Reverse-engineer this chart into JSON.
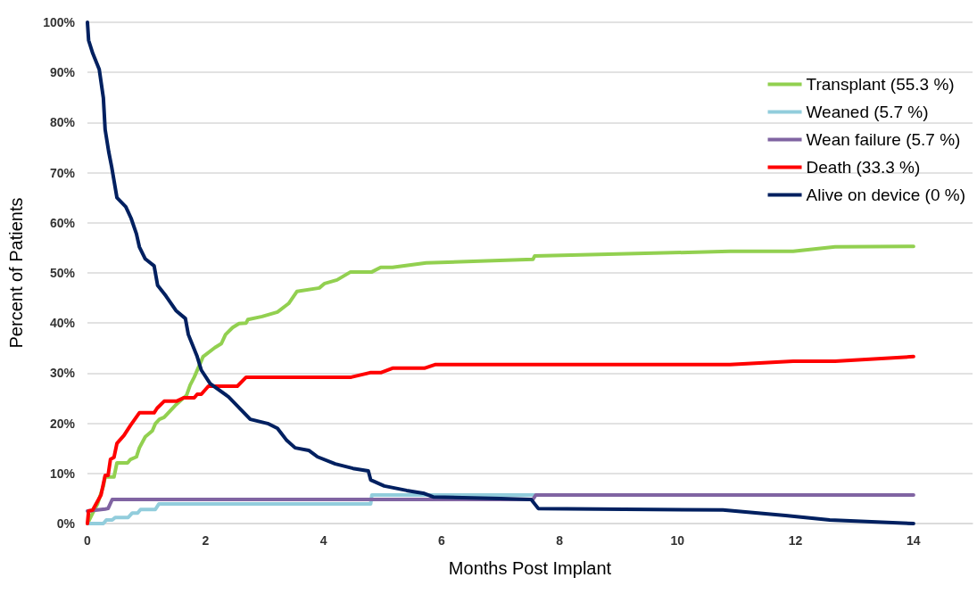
{
  "chart_data": {
    "type": "line",
    "xlabel": "Months Post Implant",
    "ylabel": "Percent of Patients",
    "xlim": [
      0,
      15
    ],
    "xticks": [
      0,
      2,
      4,
      6,
      8,
      10,
      12,
      14
    ],
    "ylim": [
      0,
      100
    ],
    "yticks": [
      {
        "value": 0,
        "label": "0%"
      },
      {
        "value": 10,
        "label": "10%"
      },
      {
        "value": 20,
        "label": "20%"
      },
      {
        "value": 30,
        "label": "30%"
      },
      {
        "value": 40,
        "label": "40%"
      },
      {
        "value": 50,
        "label": "50%"
      },
      {
        "value": 60,
        "label": "60%"
      },
      {
        "value": 70,
        "label": "70%"
      },
      {
        "value": 80,
        "label": "80%"
      },
      {
        "value": 90,
        "label": "90%"
      },
      {
        "value": 100,
        "label": "100%"
      }
    ],
    "grid": "y",
    "legend": "top right",
    "marker": "none",
    "line_style": "solid",
    "series": [
      {
        "name": "Transplant (55.3 %)",
        "color": "#92d050",
        "x": [
          0,
          0.09,
          0.17,
          0.27,
          0.3,
          0.45,
          0.5,
          0.68,
          0.73,
          0.83,
          0.88,
          0.98,
          1.1,
          1.15,
          1.22,
          1.3,
          1.51,
          1.68,
          1.74,
          1.81,
          1.96,
          2.16,
          2.27,
          2.34,
          2.46,
          2.57,
          2.69,
          2.72,
          2.96,
          3.22,
          3.41,
          3.55,
          3.93,
          4.02,
          4.23,
          4.46,
          4.82,
          4.97,
          5.17,
          5.74,
          7.55,
          7.58,
          10.89,
          11.96,
          12.67,
          14
        ],
        "values": [
          0,
          2.1,
          3.9,
          7.5,
          9.3,
          9.3,
          12.1,
          12.1,
          12.8,
          13.3,
          15.1,
          17.3,
          18.5,
          19.9,
          20.8,
          21.2,
          23.8,
          25.6,
          27.6,
          29.2,
          33.3,
          35.1,
          35.9,
          37.7,
          39.1,
          39.9,
          40,
          40.7,
          41.3,
          42.2,
          43.9,
          46.3,
          47,
          47.9,
          48.6,
          50.2,
          50.2,
          51.1,
          51.1,
          52,
          52.7,
          53.4,
          54.3,
          54.3,
          55.2,
          55.3
        ]
      },
      {
        "name": "Weaned (5.7 %)",
        "color": "#92cddc",
        "x": [
          0,
          0.27,
          0.32,
          0.42,
          0.47,
          0.69,
          0.76,
          0.85,
          0.9,
          1.15,
          1.21,
          4.8,
          4.82,
          7.58
        ],
        "values": [
          0,
          0,
          0.7,
          0.7,
          1.2,
          1.2,
          2.1,
          2.1,
          2.8,
          2.8,
          3.9,
          3.9,
          5.7,
          5.7
        ]
      },
      {
        "name": "Wean failure (5.7 %)",
        "color": "#8064a2",
        "x": [
          0,
          0.3,
          0.35,
          0.42,
          7.55,
          7.6,
          14
        ],
        "values": [
          2.5,
          2.9,
          3.0,
          4.8,
          4.8,
          5.7,
          5.7
        ]
      },
      {
        "name": "Death (33.3 %)",
        "color": "#ff0000",
        "x": [
          0,
          0.02,
          0.09,
          0.23,
          0.3,
          0.35,
          0.39,
          0.45,
          0.5,
          0.62,
          0.73,
          0.88,
          1.13,
          1.18,
          1.3,
          1.51,
          1.63,
          1.81,
          1.86,
          1.93,
          2.05,
          2.54,
          2.69,
          4.47,
          4.79,
          4.97,
          5.17,
          5.71,
          5.89,
          10.89,
          11.96,
          12.67,
          14
        ],
        "values": [
          0,
          2.5,
          2.7,
          5.7,
          9.6,
          9.6,
          12.8,
          13.2,
          16,
          17.6,
          19.6,
          22.1,
          22.1,
          23,
          24.4,
          24.4,
          25.1,
          25.1,
          25.8,
          25.8,
          27.4,
          27.4,
          29.2,
          29.2,
          30.1,
          30.1,
          31,
          31,
          31.7,
          31.7,
          32.4,
          32.4,
          33.3
        ]
      },
      {
        "name": "Alive on device (0 %)",
        "color": "#002060",
        "x": [
          0,
          0.02,
          0.09,
          0.2,
          0.27,
          0.3,
          0.36,
          0.41,
          0.5,
          0.65,
          0.74,
          0.83,
          0.88,
          0.98,
          1.13,
          1.19,
          1.33,
          1.5,
          1.66,
          1.71,
          1.86,
          1.93,
          2.08,
          2.39,
          2.61,
          2.76,
          3.07,
          3.22,
          3.37,
          3.52,
          3.75,
          3.9,
          4.2,
          4.5,
          4.76,
          4.8,
          5.03,
          5.41,
          5.71,
          5.86,
          7,
          7.52,
          7.64,
          10.77,
          11.83,
          12.58,
          14
        ],
        "values": [
          100,
          96.4,
          93.8,
          90.6,
          84.9,
          78.6,
          74.2,
          71.2,
          65,
          63.2,
          60.9,
          57.8,
          55.2,
          52.8,
          51.4,
          47.5,
          45.4,
          42.5,
          40.9,
          37.7,
          33.3,
          30.6,
          27.9,
          25.3,
          22.6,
          20.8,
          19.9,
          19,
          16.7,
          15.1,
          14.6,
          13.3,
          11.9,
          11,
          10.5,
          8.7,
          7.5,
          6.6,
          6,
          5.3,
          5,
          4.8,
          3,
          2.7,
          1.6,
          0.7,
          0
        ]
      }
    ]
  }
}
